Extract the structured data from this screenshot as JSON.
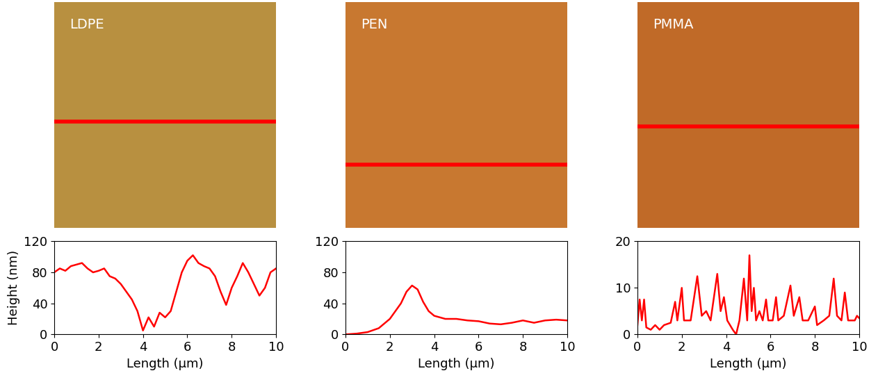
{
  "chart_data": [
    {
      "type": "line",
      "title": "LDPE",
      "xlabel": "Length (μm)",
      "ylabel": "Height (nm)",
      "x": [
        0,
        0.25,
        0.5,
        0.75,
        1,
        1.25,
        1.5,
        1.75,
        2,
        2.25,
        2.5,
        2.75,
        3,
        3.25,
        3.5,
        3.75,
        4,
        4.25,
        4.5,
        4.75,
        5,
        5.25,
        5.5,
        5.75,
        6,
        6.25,
        6.5,
        6.75,
        7,
        7.25,
        7.5,
        7.75,
        8,
        8.25,
        8.5,
        8.75,
        9,
        9.25,
        9.5,
        9.75,
        10
      ],
      "values": [
        80,
        85,
        82,
        88,
        90,
        92,
        85,
        80,
        82,
        85,
        75,
        72,
        65,
        55,
        45,
        30,
        5,
        22,
        10,
        28,
        22,
        30,
        55,
        80,
        95,
        102,
        92,
        88,
        85,
        75,
        55,
        38,
        60,
        75,
        92,
        80,
        65,
        50,
        60,
        80,
        85
      ],
      "color": "#ff0000",
      "xlim": [
        0,
        10
      ],
      "xticks": [
        0,
        2,
        4,
        6,
        8,
        10
      ],
      "ylim": [
        0,
        120
      ],
      "yticks": [
        0,
        40,
        80,
        120
      ]
    },
    {
      "type": "line",
      "title": "PEN",
      "xlabel": "Length (μm)",
      "x": [
        0,
        0.5,
        1,
        1.5,
        2,
        2.5,
        2.75,
        3,
        3.25,
        3.5,
        3.75,
        4,
        4.5,
        5,
        5.5,
        6,
        6.5,
        7,
        7.5,
        8,
        8.5,
        9,
        9.5,
        10
      ],
      "values": [
        0,
        1,
        3,
        8,
        20,
        40,
        55,
        63,
        58,
        42,
        30,
        24,
        20,
        20,
        18,
        17,
        14,
        13,
        15,
        18,
        15,
        18,
        19,
        18
      ],
      "color": "#ff0000",
      "xlim": [
        0,
        10
      ],
      "xticks": [
        0,
        2,
        4,
        6,
        8,
        10
      ],
      "ylim": [
        0,
        120
      ],
      "yticks": [
        0,
        40,
        80,
        120
      ]
    },
    {
      "type": "line",
      "title": "PMMA",
      "xlabel": "Length (μm)",
      "x": [
        0,
        0.1,
        0.2,
        0.3,
        0.4,
        0.6,
        0.8,
        1.0,
        1.2,
        1.5,
        1.7,
        1.8,
        2.0,
        2.1,
        2.4,
        2.7,
        2.9,
        3.1,
        3.3,
        3.6,
        3.75,
        3.9,
        4.05,
        4.3,
        4.45,
        4.6,
        4.8,
        4.95,
        5.05,
        5.15,
        5.25,
        5.35,
        5.5,
        5.65,
        5.8,
        5.9,
        6.1,
        6.25,
        6.35,
        6.6,
        6.9,
        7.05,
        7.3,
        7.45,
        7.7,
        8.0,
        8.1,
        8.4,
        8.65,
        8.85,
        9.0,
        9.2,
        9.35,
        9.5,
        9.8,
        9.9,
        10
      ],
      "values": [
        2,
        7.5,
        3,
        7.5,
        1.5,
        1,
        2,
        1,
        2,
        2.5,
        7,
        3,
        10,
        3,
        3,
        12.5,
        4,
        5,
        3,
        13,
        5,
        8,
        3,
        1,
        0,
        3,
        12,
        3,
        17,
        5,
        10,
        3,
        5,
        3,
        7.5,
        3,
        3,
        8,
        3,
        4,
        10.5,
        4,
        8,
        3,
        3,
        6,
        2,
        3,
        4,
        12,
        4,
        3,
        9,
        3,
        3,
        4,
        3.5
      ],
      "color": "#ff0000",
      "xlim": [
        0,
        10
      ],
      "xticks": [
        0,
        2,
        4,
        6,
        8,
        10
      ],
      "ylim": [
        0,
        20
      ],
      "yticks": [
        0,
        10,
        20
      ]
    }
  ]
}
